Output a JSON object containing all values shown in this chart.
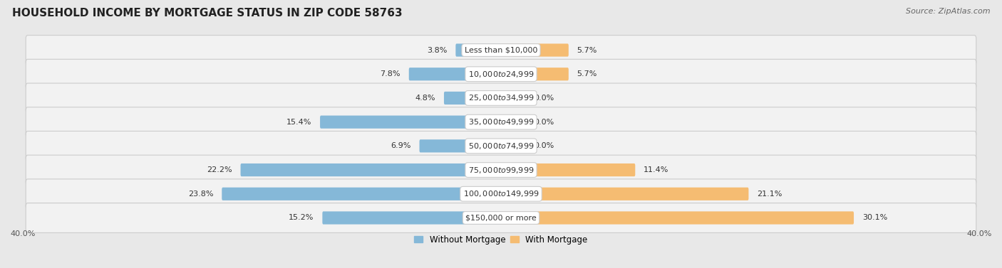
{
  "title": "HOUSEHOLD INCOME BY MORTGAGE STATUS IN ZIP CODE 58763",
  "source": "Source: ZipAtlas.com",
  "categories": [
    "Less than $10,000",
    "$10,000 to $24,999",
    "$25,000 to $34,999",
    "$35,000 to $49,999",
    "$50,000 to $74,999",
    "$75,000 to $99,999",
    "$100,000 to $149,999",
    "$150,000 or more"
  ],
  "without_mortgage": [
    3.8,
    7.8,
    4.8,
    15.4,
    6.9,
    22.2,
    23.8,
    15.2
  ],
  "with_mortgage": [
    5.7,
    5.7,
    0.0,
    0.0,
    0.0,
    11.4,
    21.1,
    30.1
  ],
  "without_mortgage_color": "#85b8d8",
  "with_mortgage_color": "#f5bc72",
  "without_mortgage_light": "#b8d6e8",
  "with_mortgage_light": "#fad9a8",
  "background_color": "#e8e8e8",
  "row_bg_color": "#f2f2f2",
  "row_border_color": "#cccccc",
  "axis_limit": 40.0,
  "title_fontsize": 11,
  "source_fontsize": 8,
  "label_fontsize": 8,
  "category_fontsize": 8,
  "legend_fontsize": 8.5,
  "axis_label_fontsize": 8,
  "min_bar_stub": 2.0
}
